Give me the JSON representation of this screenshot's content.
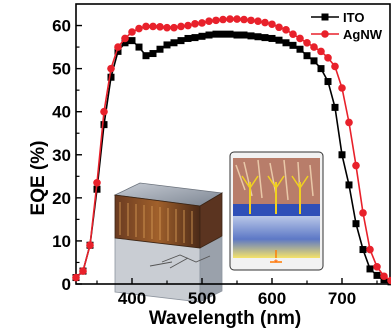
{
  "chart_data": {
    "type": "line",
    "xlabel": "Wavelength (nm)",
    "ylabel": "EQE (%)",
    "xlim": [
      320,
      770
    ],
    "ylim": [
      0,
      65
    ],
    "x_ticks": [
      400,
      500,
      600,
      700
    ],
    "y_ticks": [
      0,
      10,
      20,
      30,
      40,
      50,
      60
    ],
    "x_tick_labels": [
      "400",
      "500",
      "600",
      "700"
    ],
    "y_tick_labels": [
      "0",
      "10",
      "20",
      "30",
      "40",
      "50",
      "60"
    ],
    "grid": false,
    "legend_position": "top-right",
    "inset": "device schematic illustrations (decorative)",
    "series": [
      {
        "name": "ITO",
        "color": "#000000",
        "marker": "square",
        "x": [
          320,
          330,
          340,
          350,
          360,
          370,
          380,
          390,
          400,
          410,
          420,
          430,
          440,
          450,
          460,
          470,
          480,
          490,
          500,
          510,
          520,
          530,
          540,
          550,
          560,
          570,
          580,
          590,
          600,
          610,
          620,
          630,
          640,
          650,
          660,
          670,
          680,
          690,
          700,
          710,
          720,
          730,
          740,
          750,
          760,
          770
        ],
        "y": [
          1.5,
          3,
          9,
          22,
          37,
          48,
          54,
          56,
          56.5,
          55,
          53,
          53.5,
          54.5,
          55.5,
          56,
          56.5,
          57,
          57.2,
          57.5,
          57.8,
          58,
          58,
          58,
          57.8,
          57.8,
          57.6,
          57.4,
          57.2,
          57,
          56.6,
          56,
          55.4,
          54.5,
          53,
          51.8,
          50,
          47,
          41,
          30,
          23,
          14,
          8,
          3.5,
          2,
          1,
          0.5
        ]
      },
      {
        "name": "AgNW",
        "color": "#e8212b",
        "marker": "circle",
        "x": [
          320,
          330,
          340,
          350,
          360,
          370,
          380,
          390,
          400,
          410,
          420,
          430,
          440,
          450,
          460,
          470,
          480,
          490,
          500,
          510,
          520,
          530,
          540,
          550,
          560,
          570,
          580,
          590,
          600,
          610,
          620,
          630,
          640,
          650,
          660,
          670,
          680,
          690,
          700,
          710,
          720,
          730,
          740,
          750,
          760,
          770
        ],
        "y": [
          1.5,
          3,
          9,
          23.5,
          40,
          50,
          55,
          57,
          58.5,
          59.3,
          59.8,
          59.8,
          59.7,
          59.5,
          59.5,
          59.8,
          60,
          60.4,
          60.6,
          61,
          61.2,
          61.4,
          61.5,
          61.5,
          61.4,
          61.2,
          61,
          60.7,
          60.3,
          59.6,
          59,
          58,
          57,
          56,
          55,
          54,
          52.5,
          50.5,
          45.5,
          37.5,
          27.5,
          16.5,
          8,
          4,
          1.8,
          0.8
        ]
      }
    ]
  }
}
